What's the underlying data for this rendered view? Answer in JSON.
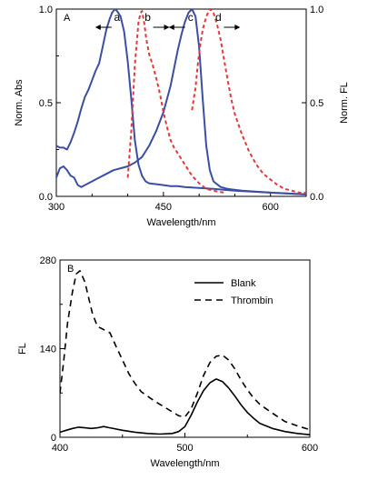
{
  "chart_data": [
    {
      "panel": "A",
      "type": "line",
      "xlabel": "Wavelength/nm",
      "ylabel": "Norm. Abs",
      "y2label": "Norm. FL",
      "xlim": [
        300,
        650
      ],
      "ylim": [
        0,
        1.0
      ],
      "y2lim": [
        0,
        1.0
      ],
      "xticks": [
        300,
        450,
        600
      ],
      "yticks": [
        0.0,
        0.5,
        1.0
      ],
      "y2ticks": [
        0.0,
        0.5,
        1.0
      ],
      "colors": {
        "abs": "#3a4fa3",
        "fl": "#e23a3a"
      },
      "series": [
        {
          "name": "a",
          "kind": "absorption",
          "axis": "left",
          "style": "solid",
          "x": [
            300,
            305,
            310,
            315,
            320,
            325,
            330,
            335,
            340,
            345,
            350,
            355,
            360,
            365,
            370,
            375,
            378,
            380,
            382,
            385,
            390,
            395,
            400,
            405,
            410,
            415,
            420,
            425,
            430,
            440,
            450,
            460,
            470,
            480,
            500,
            520,
            550,
            600,
            650
          ],
          "values": [
            0.27,
            0.26,
            0.26,
            0.25,
            0.29,
            0.34,
            0.4,
            0.47,
            0.53,
            0.57,
            0.62,
            0.67,
            0.71,
            0.8,
            0.89,
            0.95,
            0.98,
            0.99,
            1.0,
            0.99,
            0.96,
            0.88,
            0.72,
            0.52,
            0.3,
            0.17,
            0.11,
            0.08,
            0.07,
            0.065,
            0.06,
            0.055,
            0.055,
            0.05,
            0.045,
            0.04,
            0.03,
            0.02,
            0.01
          ]
        },
        {
          "name": "c",
          "kind": "absorption",
          "axis": "left",
          "style": "solid",
          "x": [
            300,
            305,
            310,
            315,
            320,
            325,
            330,
            335,
            340,
            350,
            360,
            370,
            380,
            390,
            400,
            410,
            420,
            430,
            440,
            450,
            460,
            470,
            475,
            480,
            485,
            490,
            495,
            500,
            505,
            510,
            515,
            520,
            530,
            540,
            560,
            600,
            650
          ],
          "values": [
            0.1,
            0.15,
            0.16,
            0.14,
            0.11,
            0.1,
            0.06,
            0.05,
            0.06,
            0.08,
            0.1,
            0.12,
            0.14,
            0.15,
            0.16,
            0.18,
            0.21,
            0.27,
            0.35,
            0.45,
            0.59,
            0.78,
            0.86,
            0.93,
            0.98,
            1.0,
            0.96,
            0.8,
            0.52,
            0.27,
            0.14,
            0.08,
            0.05,
            0.04,
            0.03,
            0.02,
            0.01
          ]
        },
        {
          "name": "b",
          "kind": "emission",
          "axis": "right",
          "style": "dashed",
          "x": [
            400,
            405,
            410,
            415,
            418,
            420,
            423,
            426,
            430,
            435,
            440,
            445,
            450,
            455,
            460,
            465,
            470,
            480,
            490,
            500,
            510,
            520,
            535
          ],
          "values": [
            0.1,
            0.35,
            0.7,
            0.93,
            0.98,
            0.99,
            0.93,
            0.84,
            0.76,
            0.7,
            0.63,
            0.55,
            0.45,
            0.37,
            0.3,
            0.26,
            0.23,
            0.17,
            0.11,
            0.07,
            0.04,
            0.03,
            0.02
          ]
        },
        {
          "name": "d",
          "kind": "emission",
          "axis": "right",
          "style": "dashed",
          "x": [
            490,
            495,
            498,
            502,
            505,
            510,
            515,
            520,
            525,
            530,
            535,
            540,
            545,
            550,
            560,
            570,
            580,
            590,
            600,
            610,
            620,
            630,
            640,
            650
          ],
          "values": [
            0.46,
            0.58,
            0.7,
            0.82,
            0.89,
            0.96,
            1.0,
            0.98,
            0.92,
            0.84,
            0.73,
            0.62,
            0.52,
            0.44,
            0.33,
            0.24,
            0.17,
            0.12,
            0.09,
            0.06,
            0.04,
            0.03,
            0.02,
            0.02
          ]
        }
      ],
      "curve_labels": [
        {
          "text": "a",
          "x": 385,
          "arrow": "left"
        },
        {
          "text": "b",
          "x": 428,
          "arrow": "right"
        },
        {
          "text": "c",
          "x": 488,
          "arrow": "left"
        },
        {
          "text": "d",
          "x": 527,
          "arrow": "right"
        }
      ]
    },
    {
      "panel": "B",
      "type": "line",
      "xlabel": "Wavelength/nm",
      "ylabel": "FL",
      "xlim": [
        400,
        600
      ],
      "ylim": [
        0,
        280
      ],
      "xticks": [
        400,
        500,
        600
      ],
      "yticks": [
        0,
        140,
        280
      ],
      "legend_position": "top-right",
      "series": [
        {
          "name": "Blank",
          "style": "solid",
          "x": [
            400,
            405,
            410,
            415,
            420,
            425,
            430,
            435,
            440,
            450,
            460,
            470,
            480,
            490,
            495,
            500,
            505,
            510,
            515,
            520,
            525,
            530,
            535,
            540,
            545,
            550,
            555,
            560,
            570,
            580,
            590,
            600
          ],
          "values": [
            8,
            11,
            14,
            16,
            15,
            14,
            15,
            17,
            15,
            11,
            8,
            6,
            5,
            6,
            9,
            17,
            35,
            56,
            74,
            86,
            92,
            88,
            78,
            65,
            51,
            39,
            30,
            22,
            14,
            9,
            6,
            4
          ]
        },
        {
          "name": "Thrombin",
          "style": "dashed",
          "x": [
            400,
            403,
            406,
            410,
            413,
            416,
            420,
            423,
            426,
            430,
            435,
            440,
            445,
            450,
            455,
            460,
            465,
            470,
            475,
            480,
            485,
            490,
            495,
            500,
            505,
            510,
            515,
            520,
            525,
            530,
            535,
            540,
            545,
            550,
            555,
            560,
            565,
            570,
            580,
            590,
            600
          ],
          "values": [
            70,
            120,
            180,
            230,
            258,
            263,
            245,
            220,
            195,
            175,
            170,
            165,
            143,
            122,
            101,
            85,
            72,
            65,
            58,
            52,
            46,
            40,
            34,
            32,
            45,
            70,
            98,
            118,
            128,
            130,
            122,
            108,
            90,
            75,
            62,
            52,
            45,
            38,
            25,
            18,
            12
          ]
        }
      ]
    }
  ]
}
